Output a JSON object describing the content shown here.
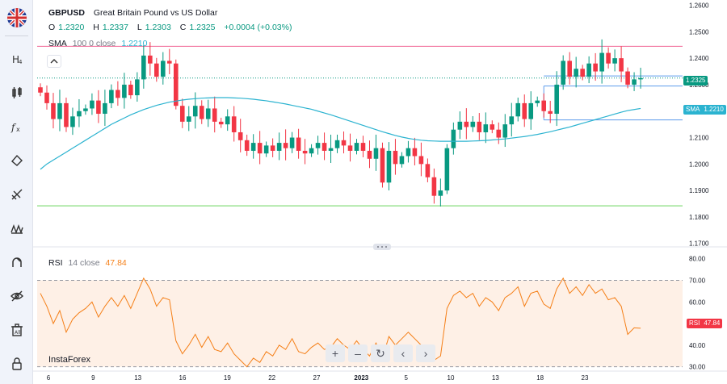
{
  "header": {
    "symbol": "GBPUSD",
    "description": "Great Britain Pound vs US Dollar",
    "ohlc": {
      "o_label": "O",
      "o_value": "1.2320",
      "h_label": "H",
      "h_value": "1.2337",
      "l_label": "L",
      "l_value": "1.2303",
      "c_label": "C",
      "c_value": "1.2325",
      "change": "+0.0004 (+0.03%)"
    },
    "sma_legend": {
      "name": "SMA",
      "params": "100 0 close",
      "value": "1.2210"
    },
    "rsi_legend": {
      "name": "RSI",
      "params": "14 close",
      "value": "47.84"
    }
  },
  "price_tag": "1.2325",
  "sma_tag": {
    "label": "SMA",
    "value": "1.2210"
  },
  "rsi_tag": {
    "label": "RSI",
    "value": "47.84"
  },
  "brand": "InstaForex",
  "toolbar": {
    "items": [
      "flag-icon",
      "candles-icon",
      "chart-type-icon",
      "indicators-icon",
      "draw-line-icon",
      "fib-icon",
      "patterns-icon",
      "magnet-icon",
      "hide-drawings-icon",
      "delete-all-icon",
      "lock-icon"
    ]
  },
  "nav": {
    "zoom_in": "+",
    "zoom_out": "–",
    "reset": "↻",
    "left": "‹",
    "right": "›"
  },
  "colors": {
    "up": "#089981",
    "down": "#f23645",
    "sma": "#2bb3d0",
    "rsi": "#f57f17",
    "resistance": "#f06292",
    "support": "#66d45a",
    "hline": "#5d9cec"
  },
  "chart_data": {
    "type": "candlestick",
    "price_axis": {
      "ticks": [
        "1.2600",
        "1.2500",
        "1.2400",
        "1.2300",
        "1.2200",
        "1.2100",
        "1.2000",
        "1.1900",
        "1.1800",
        "1.1700"
      ],
      "range": [
        1.169,
        1.262
      ]
    },
    "time_axis": [
      "6",
      "9",
      "13",
      "16",
      "19",
      "22",
      "27",
      "2023",
      "5",
      "10",
      "13",
      "18",
      "23"
    ],
    "rsi_axis": {
      "ticks": [
        "80.00",
        "70.00",
        "60.00",
        "50.00",
        "40.00",
        "30.00"
      ],
      "range": [
        28,
        84
      ],
      "band": [
        30,
        70
      ]
    },
    "levels": [
      {
        "name": "resistance",
        "price": 1.2445
      },
      {
        "name": "support",
        "price": 1.1842
      },
      {
        "name": "range-high",
        "price": 1.2333
      },
      {
        "name": "range-mid",
        "price": 1.2295
      },
      {
        "name": "range-low",
        "price": 1.2167
      }
    ],
    "close": [
      1.227,
      1.223,
      1.217,
      1.223,
      1.214,
      1.218,
      1.22,
      1.221,
      1.224,
      1.219,
      1.223,
      1.228,
      1.225,
      1.23,
      1.226,
      1.232,
      1.241,
      1.238,
      1.233,
      1.239,
      1.238,
      1.222,
      1.216,
      1.218,
      1.222,
      1.217,
      1.221,
      1.216,
      1.215,
      1.218,
      1.212,
      1.209,
      1.205,
      1.208,
      1.204,
      1.207,
      1.205,
      1.208,
      1.206,
      1.21,
      1.205,
      1.204,
      1.206,
      1.208,
      1.205,
      1.206,
      1.209,
      1.207,
      1.205,
      1.208,
      1.205,
      1.202,
      1.206,
      1.193,
      1.205,
      1.2,
      1.203,
      1.206,
      1.203,
      1.2,
      1.195,
      1.188,
      1.19,
      1.206,
      1.213,
      1.216,
      1.214,
      1.216,
      1.212,
      1.215,
      1.213,
      1.21,
      1.215,
      1.218,
      1.223,
      1.217,
      1.223,
      1.224,
      1.22,
      1.219,
      1.23,
      1.239,
      1.233,
      1.236,
      1.233,
      1.238,
      1.235,
      1.242,
      1.238,
      1.24,
      1.235,
      1.23,
      1.232,
      1.2325
    ],
    "sma": [
      1.198,
      1.2,
      1.2015,
      1.203,
      1.2045,
      1.206,
      1.2075,
      1.209,
      1.2105,
      1.212,
      1.2135,
      1.215,
      1.2162,
      1.2174,
      1.2186,
      1.2196,
      1.2206,
      1.2214,
      1.2222,
      1.2228,
      1.2234,
      1.2238,
      1.2242,
      1.2245,
      1.2247,
      1.2249,
      1.225,
      1.2251,
      1.2251,
      1.2251,
      1.225,
      1.2249,
      1.2247,
      1.2245,
      1.2242,
      1.2239,
      1.2235,
      1.2231,
      1.2227,
      1.2222,
      1.2217,
      1.2212,
      1.2207,
      1.22,
      1.2193,
      1.2186,
      1.2178,
      1.217,
      1.2162,
      1.2154,
      1.2146,
      1.2138,
      1.213,
      1.2122,
      1.2115,
      1.2108,
      1.2102,
      1.2097,
      1.2093,
      1.209,
      1.2088,
      1.2087,
      1.2086,
      1.2086,
      1.2086,
      1.2086,
      1.2086,
      1.2087,
      1.2088,
      1.2089,
      1.2091,
      1.2093,
      1.2095,
      1.2098,
      1.2101,
      1.2104,
      1.2108,
      1.2112,
      1.2117,
      1.2122,
      1.2128,
      1.2134,
      1.214,
      1.2147,
      1.2154,
      1.2161,
      1.2168,
      1.2175,
      1.2182,
      1.2189,
      1.2196,
      1.2202,
      1.2206,
      1.221
    ],
    "rsi": [
      64,
      58,
      50,
      56,
      46,
      52,
      55,
      57,
      60,
      53,
      58,
      62,
      58,
      63,
      57,
      64,
      71,
      66,
      58,
      62,
      61,
      42,
      36,
      40,
      45,
      39,
      44,
      38,
      37,
      41,
      36,
      33,
      30,
      34,
      32,
      37,
      35,
      40,
      38,
      43,
      37,
      36,
      39,
      41,
      38,
      39,
      43,
      40,
      38,
      42,
      38,
      35,
      41,
      34,
      44,
      40,
      43,
      46,
      43,
      40,
      36,
      33,
      35,
      57,
      63,
      65,
      62,
      64,
      58,
      62,
      60,
      56,
      62,
      64,
      67,
      58,
      64,
      65,
      59,
      57,
      66,
      71,
      64,
      67,
      63,
      68,
      64,
      66,
      61,
      62,
      58,
      45,
      48,
      47.84
    ]
  }
}
